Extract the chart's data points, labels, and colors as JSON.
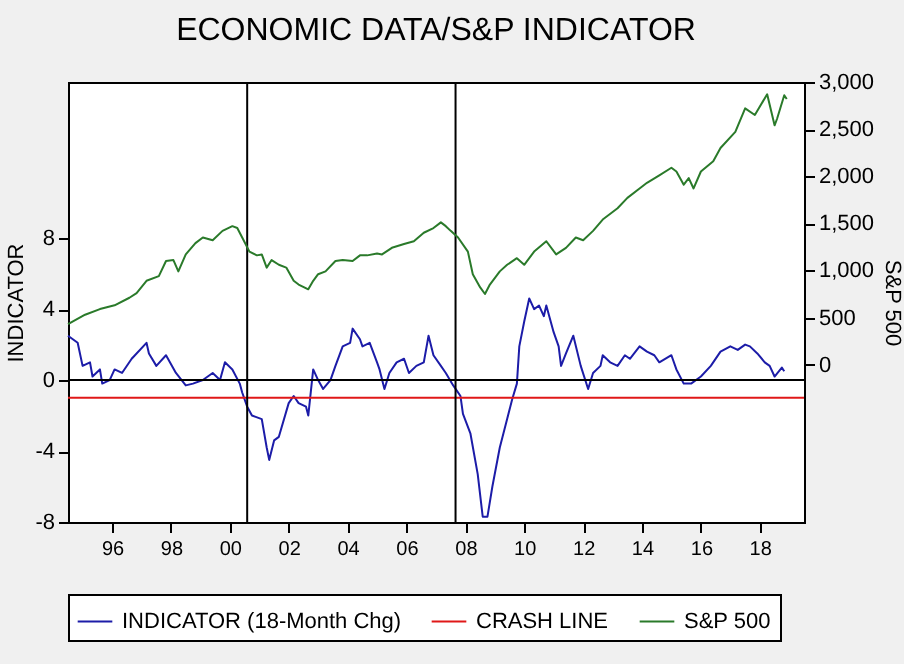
{
  "chart_data": {
    "type": "line",
    "title": "ECONOMIC DATA/S&P INDICATOR",
    "ylabel": "INDICATOR",
    "y2label": "S&P 500",
    "xlim": [
      "1995-01",
      "2020-01"
    ],
    "xticks": [
      {
        "value": "1996-07",
        "label": "96"
      },
      {
        "value": "1998-07",
        "label": "98"
      },
      {
        "value": "2000-07",
        "label": "00"
      },
      {
        "value": "2002-07",
        "label": "02"
      },
      {
        "value": "2004-07",
        "label": "04"
      },
      {
        "value": "2006-07",
        "label": "06"
      },
      {
        "value": "2008-07",
        "label": "08"
      },
      {
        "value": "2010-07",
        "label": "10"
      },
      {
        "value": "2012-07",
        "label": "12"
      },
      {
        "value": "2014-07",
        "label": "14"
      },
      {
        "value": "2016-07",
        "label": "16"
      },
      {
        "value": "2018-07",
        "label": "18"
      }
    ],
    "ylim": [
      -8,
      16.8
    ],
    "yticks": [
      -8,
      -4,
      0,
      4,
      8
    ],
    "y2lim": [
      -1670,
      3000
    ],
    "y2ticks": [
      0,
      500,
      {
        "value": 1000,
        "label": "1,000"
      },
      {
        "value": 1500,
        "label": "1,500"
      },
      {
        "value": 2000,
        "label": "2,000"
      },
      {
        "value": 2500,
        "label": "2,500"
      },
      {
        "value": 3000,
        "label": "3,000"
      }
    ],
    "grid": false,
    "legend": "bottom",
    "series": [
      {
        "name": "INDICATOR (18-Month Chg)",
        "color": "#1c1ca8",
        "x": [
          "1995-01",
          "1995-05",
          "1995-07",
          "1995-10",
          "1995-11",
          "1996-02",
          "1996-03",
          "1996-06",
          "1996-08",
          "1996-11",
          "1997-03",
          "1997-09",
          "1997-10",
          "1998-01",
          "1998-05",
          "1998-09",
          "1999-01",
          "1999-04",
          "1999-08",
          "1999-12",
          "2000-03",
          "2000-05",
          "2000-08",
          "2000-11",
          "2000-12",
          "2001-02",
          "2001-04",
          "2001-08",
          "2001-10",
          "2001-11",
          "2002-01",
          "2002-03",
          "2002-07",
          "2002-09",
          "2002-11",
          "2003-02",
          "2003-03",
          "2003-05",
          "2003-07",
          "2003-09",
          "2003-12",
          "2004-02",
          "2004-05",
          "2004-08",
          "2004-09",
          "2004-12",
          "2005-01",
          "2005-04",
          "2005-07",
          "2005-08",
          "2005-10",
          "2005-12",
          "2006-03",
          "2006-06",
          "2006-08",
          "2006-11",
          "2007-02",
          "2007-04",
          "2007-06",
          "2007-09",
          "2007-11",
          "2008-02",
          "2008-05",
          "2008-06",
          "2008-09",
          "2008-12",
          "2009-02",
          "2009-04",
          "2009-06",
          "2009-09",
          "2009-12",
          "2010-02",
          "2010-04",
          "2010-05",
          "2010-07",
          "2010-09",
          "2010-11",
          "2011-01",
          "2011-03",
          "2011-04",
          "2011-07",
          "2011-09",
          "2011-10",
          "2011-12",
          "2012-03",
          "2012-06",
          "2012-09",
          "2012-11",
          "2013-02",
          "2013-03",
          "2013-06",
          "2013-09",
          "2013-12",
          "2014-02",
          "2014-06",
          "2014-09",
          "2014-12",
          "2015-02",
          "2015-07",
          "2015-09",
          "2015-12",
          "2016-03",
          "2016-07",
          "2016-11",
          "2017-03",
          "2017-07",
          "2017-10",
          "2018-01",
          "2018-03",
          "2018-06",
          "2018-09",
          "2018-11",
          "2019-01",
          "2019-04",
          "2019-05"
        ],
        "values": [
          2.5,
          2.1,
          0.8,
          1.0,
          0.2,
          0.6,
          -0.2,
          0.0,
          0.6,
          0.4,
          1.2,
          2.1,
          1.5,
          0.8,
          1.4,
          0.4,
          -0.3,
          -0.2,
          0.0,
          0.4,
          0.0,
          1.0,
          0.6,
          -0.2,
          -0.7,
          -1.5,
          -2.0,
          -2.2,
          -3.8,
          -4.5,
          -3.4,
          -3.2,
          -1.3,
          -0.9,
          -1.3,
          -1.5,
          -2.0,
          0.6,
          0.0,
          -0.5,
          0.0,
          0.8,
          1.9,
          2.1,
          2.9,
          2.3,
          1.9,
          2.1,
          1.0,
          0.6,
          -0.5,
          0.4,
          1.0,
          1.2,
          0.4,
          0.8,
          1.0,
          2.5,
          1.4,
          0.8,
          0.4,
          -0.3,
          -0.9,
          -1.9,
          -3.0,
          -5.3,
          -7.7,
          -7.7,
          -6.0,
          -3.8,
          -2.2,
          -1.1,
          -0.2,
          1.9,
          3.3,
          4.6,
          4.0,
          4.2,
          3.6,
          4.2,
          2.7,
          1.9,
          0.8,
          1.5,
          2.5,
          0.8,
          -0.5,
          0.4,
          0.8,
          1.4,
          1.0,
          0.8,
          1.4,
          1.2,
          1.9,
          1.6,
          1.4,
          1.0,
          1.4,
          0.6,
          -0.2,
          -0.2,
          0.2,
          0.8,
          1.6,
          1.9,
          1.7,
          2.0,
          1.9,
          1.5,
          1.0,
          0.8,
          0.2,
          0.7,
          0.5
        ]
      },
      {
        "name": "S&P 500",
        "color": "#2a7a2a",
        "axis": "y2",
        "x": [
          "1995-01",
          "1995-08",
          "1996-02",
          "1996-08",
          "1997-02",
          "1997-05",
          "1997-09",
          "1998-02",
          "1998-05",
          "1998-08",
          "1998-10",
          "1999-01",
          "1999-05",
          "1999-08",
          "1999-12",
          "2000-04",
          "2000-08",
          "2000-10",
          "2000-12",
          "2001-03",
          "2001-06",
          "2001-08",
          "2001-10",
          "2001-12",
          "2002-03",
          "2002-06",
          "2002-09",
          "2002-11",
          "2003-03",
          "2003-05",
          "2003-07",
          "2003-10",
          "2004-02",
          "2004-05",
          "2004-09",
          "2004-12",
          "2005-03",
          "2005-07",
          "2005-09",
          "2006-01",
          "2006-06",
          "2006-10",
          "2007-02",
          "2007-06",
          "2007-09",
          "2007-11",
          "2008-01",
          "2008-04",
          "2008-08",
          "2008-10",
          "2009-01",
          "2009-03",
          "2009-05",
          "2009-09",
          "2009-12",
          "2010-04",
          "2010-07",
          "2010-11",
          "2011-04",
          "2011-08",
          "2011-12",
          "2012-04",
          "2012-07",
          "2012-11",
          "2013-03",
          "2013-09",
          "2014-01",
          "2014-06",
          "2014-09",
          "2015-02",
          "2015-07",
          "2015-09",
          "2015-12",
          "2016-02",
          "2016-04",
          "2016-07",
          "2016-12",
          "2017-03",
          "2017-09",
          "2018-01",
          "2018-05",
          "2018-10",
          "2019-01",
          "2019-02",
          "2019-05",
          "2019-06"
        ],
        "values": [
          430,
          530,
          590,
          630,
          710,
          760,
          890,
          940,
          1100,
          1110,
          990,
          1170,
          1290,
          1350,
          1320,
          1420,
          1470,
          1450,
          1350,
          1200,
          1160,
          1170,
          1030,
          1110,
          1060,
          1030,
          890,
          850,
          800,
          890,
          960,
          990,
          1100,
          1110,
          1100,
          1160,
          1160,
          1180,
          1170,
          1240,
          1280,
          1310,
          1400,
          1450,
          1510,
          1470,
          1420,
          1350,
          1200,
          960,
          820,
          750,
          850,
          990,
          1060,
          1130,
          1060,
          1200,
          1310,
          1170,
          1240,
          1350,
          1320,
          1420,
          1540,
          1660,
          1770,
          1870,
          1930,
          2010,
          2090,
          2050,
          1910,
          1980,
          1870,
          2050,
          2160,
          2300,
          2470,
          2720,
          2650,
          2870,
          2540,
          2610,
          2860,
          2820
        ]
      }
    ],
    "ref_lines": [
      {
        "axis": "y",
        "value": 0,
        "color": "#000000"
      },
      {
        "axis": "y",
        "value": -1,
        "label": "CRASH LINE",
        "color": "#e01818"
      },
      {
        "axis": "x",
        "value": "2001-02",
        "color": "#000000"
      },
      {
        "axis": "x",
        "value": "2008-03",
        "color": "#000000"
      }
    ]
  }
}
